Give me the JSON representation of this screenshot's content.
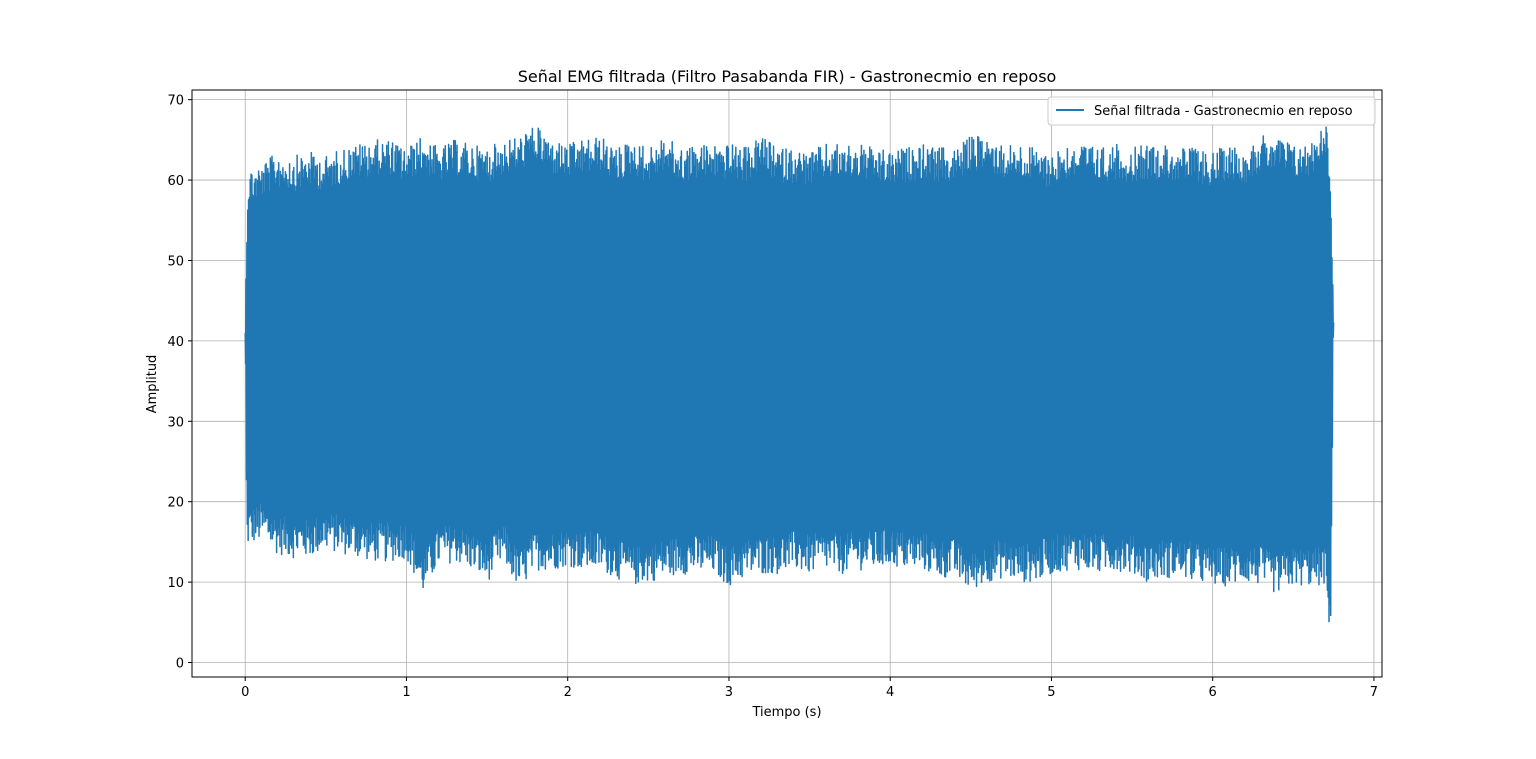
{
  "chart_data": {
    "type": "line",
    "title": "Señal EMG filtrada (Filtro Pasabanda FIR) - Gastronecmio en reposo",
    "xlabel": "Tiempo (s)",
    "ylabel": "Amplitud",
    "xlim": [
      -0.33,
      7.05
    ],
    "ylim": [
      -1.8,
      71.2
    ],
    "xticks": [
      0,
      1,
      2,
      3,
      4,
      5,
      6,
      7
    ],
    "yticks": [
      0,
      10,
      20,
      30,
      40,
      50,
      60,
      70
    ],
    "xtick_labels": [
      "0",
      "1",
      "2",
      "3",
      "4",
      "5",
      "6",
      "7"
    ],
    "ytick_labels": [
      "0",
      "10",
      "20",
      "30",
      "40",
      "50",
      "60",
      "70"
    ],
    "grid": true,
    "legend_position": "top-right",
    "series": [
      {
        "name": "Señal filtrada - Gastronecmio en reposo",
        "color": "#1f77b4",
        "x_range": [
          0,
          6.75
        ],
        "x": [
          0,
          0.01,
          0.02,
          0.1,
          0.2,
          0.3,
          0.4,
          0.5,
          0.6,
          0.7,
          0.8,
          0.9,
          1.0,
          1.1,
          1.2,
          1.3,
          1.4,
          1.5,
          1.6,
          1.7,
          1.8,
          1.9,
          2.0,
          2.1,
          2.2,
          2.3,
          2.4,
          2.5,
          2.6,
          2.7,
          2.8,
          2.9,
          3.0,
          3.1,
          3.2,
          3.3,
          3.4,
          3.5,
          3.6,
          3.7,
          3.8,
          3.9,
          4.0,
          4.1,
          4.2,
          4.3,
          4.4,
          4.5,
          4.6,
          4.7,
          4.8,
          4.9,
          5.0,
          5.1,
          5.2,
          5.3,
          5.4,
          5.5,
          5.6,
          5.7,
          5.8,
          5.9,
          6.0,
          6.1,
          6.2,
          6.3,
          6.4,
          6.5,
          6.6,
          6.7,
          6.73,
          6.75
        ],
        "upper_envelope": [
          41,
          56.5,
          61.5,
          62,
          63.5,
          63,
          63.5,
          63,
          64,
          64.5,
          65,
          65,
          64,
          65.5,
          64,
          65,
          64.5,
          64,
          65,
          65.5,
          66.8,
          65,
          64.5,
          65,
          65.5,
          64,
          65,
          64,
          65.5,
          64,
          64.5,
          64.5,
          64.5,
          64,
          65.5,
          64,
          64,
          63.5,
          64.5,
          64.5,
          64.5,
          64,
          63.5,
          64,
          64.5,
          64,
          64,
          65.5,
          65.5,
          64.5,
          64.5,
          64,
          63.5,
          64.5,
          64.5,
          64,
          64.5,
          64,
          64.5,
          64.5,
          64,
          64,
          63.5,
          64.5,
          64,
          65.5,
          65.5,
          64.5,
          64.5,
          67.8,
          62.5,
          42.3
        ],
        "lower_envelope": [
          41,
          13.5,
          14.5,
          15,
          13.5,
          13,
          13,
          14,
          13.5,
          13,
          12.5,
          12.5,
          13,
          8.5,
          12,
          12.5,
          11.5,
          10,
          12.5,
          9,
          11.5,
          11.5,
          12,
          11.5,
          11.5,
          10.5,
          9.5,
          10,
          10.5,
          11,
          11,
          11,
          9.5,
          10.5,
          11,
          11,
          11.5,
          11,
          11.5,
          11,
          11.5,
          11.5,
          12,
          11.5,
          11.5,
          10.5,
          10.5,
          8.8,
          10,
          10.5,
          10,
          10,
          11,
          11.5,
          11.5,
          11,
          11.5,
          11,
          10,
          10.5,
          10.5,
          10,
          9.5,
          9.5,
          10,
          9.5,
          8.5,
          9.5,
          9.5,
          9.5,
          1.5,
          42.3
        ]
      }
    ]
  }
}
